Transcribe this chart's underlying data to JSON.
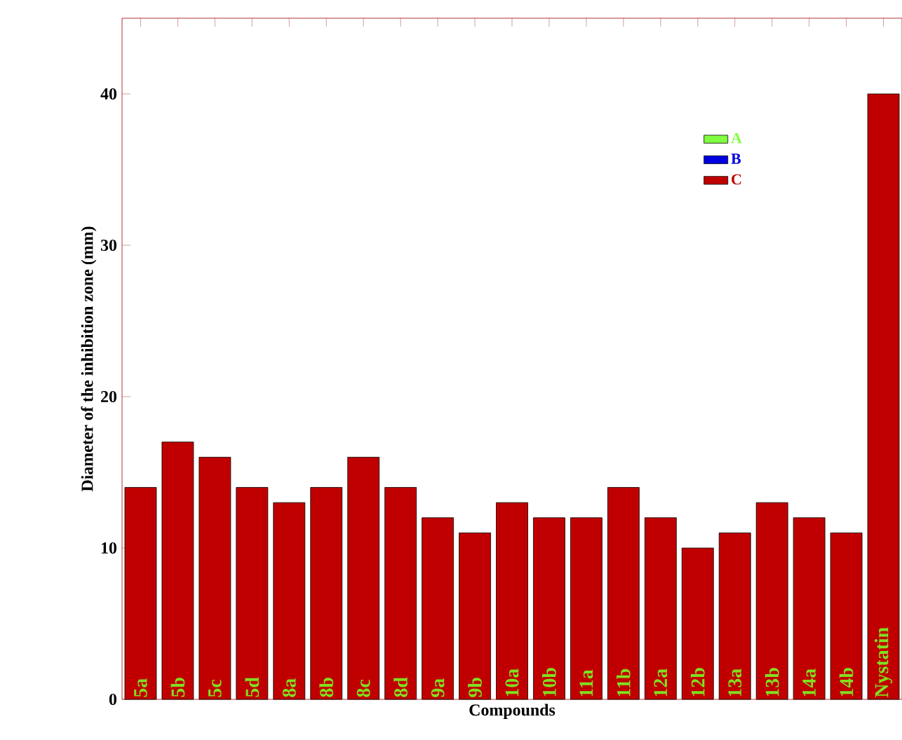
{
  "chart_data": {
    "type": "bar",
    "xlabel": "Compounds",
    "ylabel": "Diameter of the inhibition zone (mm)",
    "categories": [
      "5a",
      "5b",
      "5c",
      "5d",
      "8a",
      "8b",
      "8c",
      "8d",
      "9a",
      "9b",
      "10a",
      "10b",
      "11a",
      "11b",
      "12a",
      "12b",
      "13a",
      "13b",
      "14a",
      "14b",
      "Nystatin"
    ],
    "series": [
      {
        "name": "A",
        "color": "#80ff40",
        "values": [
          null,
          null,
          null,
          null,
          null,
          null,
          null,
          null,
          null,
          null,
          null,
          null,
          null,
          null,
          null,
          null,
          null,
          null,
          null,
          null,
          null
        ]
      },
      {
        "name": "B",
        "color": "#0000e0",
        "values": [
          null,
          null,
          null,
          null,
          null,
          null,
          null,
          null,
          null,
          null,
          null,
          null,
          null,
          null,
          null,
          null,
          null,
          null,
          null,
          null,
          null
        ]
      },
      {
        "name": "C",
        "color": "#c00000",
        "values": [
          14,
          17,
          16,
          14,
          13,
          14,
          16,
          14,
          12,
          11,
          13,
          12,
          12,
          14,
          12,
          10,
          11,
          13,
          12,
          11,
          40
        ]
      }
    ],
    "ylim": [
      0,
      45
    ],
    "yticks": [
      0,
      10,
      20,
      30,
      40
    ],
    "grid": false,
    "legend": "top right"
  }
}
